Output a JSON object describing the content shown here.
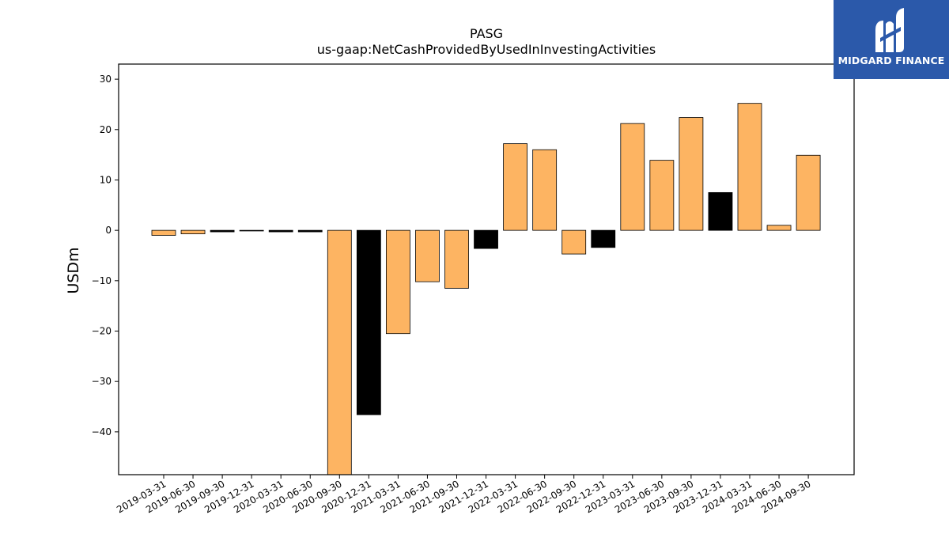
{
  "chart_data": {
    "type": "bar",
    "title": "PASG",
    "subtitle": "us-gaap:NetCashProvidedByUsedInInvestingActivities",
    "ylabel": "USDm",
    "xlabel": "",
    "ylim": [
      -48.5,
      33
    ],
    "yticks": [
      -40,
      -30,
      -20,
      -10,
      0,
      10,
      20,
      30
    ],
    "categories": [
      "2019-03-31",
      "2019-06-30",
      "2019-09-30",
      "2019-12-31",
      "2020-03-31",
      "2020-06-30",
      "2020-09-30",
      "2020-12-31",
      "2021-03-31",
      "2021-06-30",
      "2021-09-30",
      "2021-12-31",
      "2022-03-31",
      "2022-06-30",
      "2022-09-30",
      "2022-12-31",
      "2023-03-31",
      "2023-06-30",
      "2023-09-30",
      "2023-12-31",
      "2024-03-31",
      "2024-06-30",
      "2024-09-30"
    ],
    "values": [
      -1.0,
      -0.7,
      -0.3,
      -0.1,
      -0.3,
      -0.3,
      -48.5,
      -36.6,
      -20.5,
      -10.2,
      -11.5,
      -3.6,
      17.2,
      16.0,
      -4.7,
      -3.4,
      21.2,
      13.9,
      22.4,
      7.5,
      25.2,
      1.0,
      14.9
    ],
    "colors": [
      "#fdb462",
      "#fdb462",
      "#000000",
      "#000000",
      "#000000",
      "#000000",
      "#fdb462",
      "#000000",
      "#fdb462",
      "#fdb462",
      "#fdb462",
      "#000000",
      "#fdb462",
      "#fdb462",
      "#fdb462",
      "#000000",
      "#fdb462",
      "#fdb462",
      "#fdb462",
      "#000000",
      "#fdb462",
      "#fdb462",
      "#fdb462"
    ],
    "grid": false,
    "legend": "none"
  },
  "logo": {
    "text": "MIDGARD FINANCE",
    "icon": "midgard-logo-icon",
    "background": "#2b59aa"
  }
}
